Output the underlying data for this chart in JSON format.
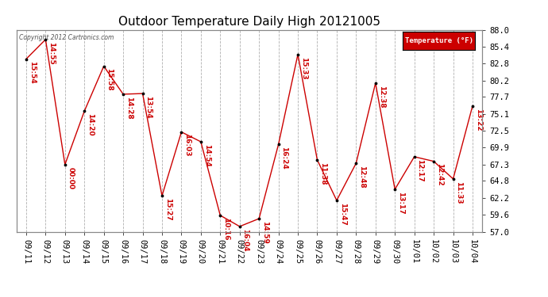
{
  "title": "Outdoor Temperature Daily High 20121005",
  "ylabel_right": "Temperature (°F)",
  "copyright_text": "Copyright 2012 Cartronics.com",
  "ylim": [
    57.0,
    88.0
  ],
  "y_ticks": [
    57.0,
    59.6,
    62.2,
    64.8,
    67.3,
    69.9,
    72.5,
    75.1,
    77.7,
    80.2,
    82.8,
    85.4,
    88.0
  ],
  "dates": [
    "09/11",
    "09/12",
    "09/13",
    "09/14",
    "09/15",
    "09/16",
    "09/17",
    "09/18",
    "09/19",
    "09/20",
    "09/21",
    "09/22",
    "09/23",
    "09/24",
    "09/25",
    "09/26",
    "09/27",
    "09/28",
    "09/29",
    "09/30",
    "10/01",
    "10/02",
    "10/03",
    "10/04"
  ],
  "temperatures": [
    83.5,
    86.5,
    67.3,
    75.5,
    82.4,
    78.1,
    78.2,
    62.5,
    72.3,
    70.8,
    59.5,
    57.8,
    59.0,
    70.4,
    84.2,
    68.0,
    61.8,
    67.5,
    79.8,
    63.5,
    68.5,
    67.8,
    65.1,
    76.3
  ],
  "annotations": [
    "15:54",
    "14:55",
    "00:00",
    "14:20",
    "15:58",
    "14:28",
    "13:54",
    "15:27",
    "16:03",
    "14:54",
    "10:16",
    "16:04",
    "14:59",
    "16:24",
    "15:33",
    "11:38",
    "15:47",
    "12:48",
    "12:38",
    "13:17",
    "12:17",
    "12:42",
    "11:33",
    "13:22"
  ],
  "line_color": "#cc0000",
  "bg_color": "#ffffff",
  "grid_color": "#b0b0b0",
  "legend_bg": "#cc0000",
  "legend_text_color": "#ffffff",
  "title_fontsize": 11,
  "tick_fontsize": 7.5,
  "annotation_fontsize": 6.5,
  "annotation_color": "#cc0000"
}
